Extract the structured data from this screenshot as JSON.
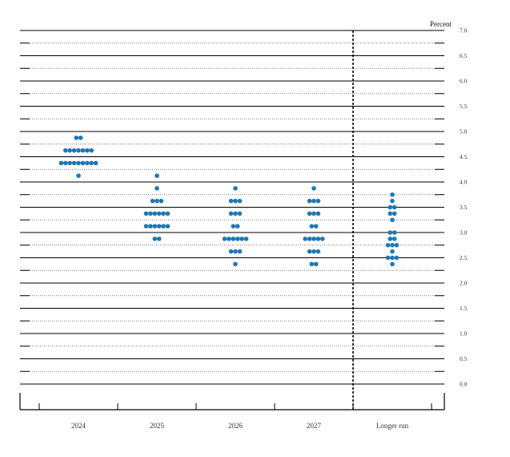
{
  "chart_data": {
    "type": "scatter",
    "subtype": "dot-plot",
    "title": "",
    "xlabel": "",
    "ylabel": "Percent",
    "ylim": [
      0,
      7
    ],
    "yticks": [
      "0.0",
      "0.5",
      "1.0",
      "1.5",
      "2.0",
      "2.5",
      "3.0",
      "3.5",
      "4.0",
      "4.5",
      "5.0",
      "5.5",
      "6.0",
      "6.5",
      "7.0"
    ],
    "y_axis_side": "right",
    "grid": "solid at whole and half percents, dotted in between",
    "dot_color": "#1f77b4",
    "categories": [
      "2024",
      "2025",
      "2026",
      "2027",
      "Longer run"
    ],
    "separator_before": "Longer run",
    "points": [
      {
        "category": "2024",
        "value": 4.875,
        "count": 2
      },
      {
        "category": "2024",
        "value": 4.625,
        "count": 7
      },
      {
        "category": "2024",
        "value": 4.375,
        "count": 9
      },
      {
        "category": "2024",
        "value": 4.125,
        "count": 1
      },
      {
        "category": "2025",
        "value": 4.125,
        "count": 1
      },
      {
        "category": "2025",
        "value": 3.875,
        "count": 1
      },
      {
        "category": "2025",
        "value": 3.625,
        "count": 3
      },
      {
        "category": "2025",
        "value": 3.375,
        "count": 6
      },
      {
        "category": "2025",
        "value": 3.125,
        "count": 6
      },
      {
        "category": "2025",
        "value": 2.875,
        "count": 2
      },
      {
        "category": "2026",
        "value": 3.875,
        "count": 1
      },
      {
        "category": "2026",
        "value": 3.625,
        "count": 3
      },
      {
        "category": "2026",
        "value": 3.375,
        "count": 3
      },
      {
        "category": "2026",
        "value": 3.125,
        "count": 2
      },
      {
        "category": "2026",
        "value": 2.875,
        "count": 6
      },
      {
        "category": "2026",
        "value": 2.625,
        "count": 3
      },
      {
        "category": "2026",
        "value": 2.375,
        "count": 1
      },
      {
        "category": "2027",
        "value": 3.875,
        "count": 1
      },
      {
        "category": "2027",
        "value": 3.625,
        "count": 3
      },
      {
        "category": "2027",
        "value": 3.375,
        "count": 3
      },
      {
        "category": "2027",
        "value": 3.125,
        "count": 2
      },
      {
        "category": "2027",
        "value": 2.875,
        "count": 5
      },
      {
        "category": "2027",
        "value": 2.625,
        "count": 3
      },
      {
        "category": "2027",
        "value": 2.375,
        "count": 2
      },
      {
        "category": "Longer run",
        "value": 3.75,
        "count": 1
      },
      {
        "category": "Longer run",
        "value": 3.625,
        "count": 1
      },
      {
        "category": "Longer run",
        "value": 3.5,
        "count": 2
      },
      {
        "category": "Longer run",
        "value": 3.375,
        "count": 2
      },
      {
        "category": "Longer run",
        "value": 3.25,
        "count": 1
      },
      {
        "category": "Longer run",
        "value": 3.0,
        "count": 2
      },
      {
        "category": "Longer run",
        "value": 2.875,
        "count": 2
      },
      {
        "category": "Longer run",
        "value": 2.75,
        "count": 3
      },
      {
        "category": "Longer run",
        "value": 2.625,
        "count": 1
      },
      {
        "category": "Longer run",
        "value": 2.5,
        "count": 3
      },
      {
        "category": "Longer run",
        "value": 2.375,
        "count": 1
      }
    ]
  }
}
